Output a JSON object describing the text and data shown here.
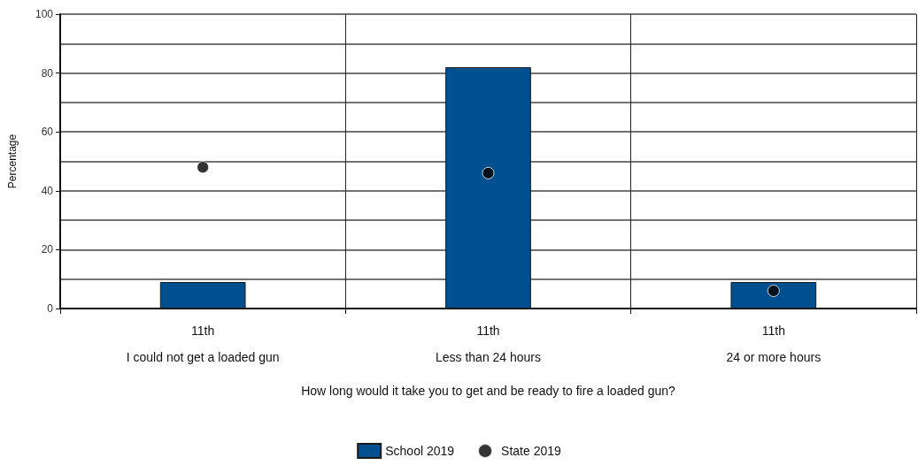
{
  "chart_data": {
    "type": "bar",
    "xlabel": "How long would it take you to get and be ready to fire a loaded gun?",
    "ylabel": "Percentage",
    "categories": [
      "11th\nI could not get a loaded gun",
      "11th\nLess than 24 hours",
      "11th\n24 or more hours"
    ],
    "series": [
      {
        "name": "School 2019",
        "color": "#00508f",
        "values": [
          9,
          82,
          9
        ]
      },
      {
        "name": "State 2019",
        "type": "scatter",
        "color": "#000000",
        "values": [
          48,
          46,
          6
        ]
      }
    ],
    "ylim": [
      0,
      100
    ],
    "yticks": [
      0,
      20,
      40,
      60,
      80,
      100
    ],
    "grid": true,
    "legend": "bottom",
    "marker": "circle"
  }
}
